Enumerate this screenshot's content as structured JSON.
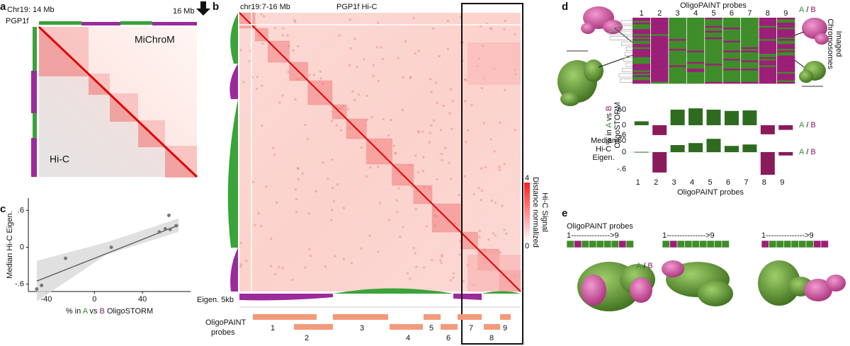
{
  "colors": {
    "A": "#2f8f2f",
    "B": "#8e1767"
  },
  "panel_a": {
    "letter": "a",
    "left_label": "Chr19: 14 Mb",
    "right_label": "16 Mb",
    "track_label": "PGP1f",
    "upper_label": "MiChroM",
    "lower_label": "Hi-C"
  },
  "panel_b": {
    "letter": "b",
    "region": "chr19:7-16 Mb",
    "title": "PGP1f Hi-C",
    "colorbar_max": 4,
    "colorbar_min": 0,
    "colorbar_label": [
      "Distance normalized",
      "Hi-C Signal"
    ],
    "eigen_label": "Eigen. 5kb",
    "probes_label": [
      "OligoPAINT",
      "probes"
    ],
    "probes": [
      "1",
      "2",
      "3",
      "4",
      "5",
      "6",
      "7",
      "8",
      "9"
    ]
  },
  "panel_d": {
    "letter": "d",
    "matrix_title": "OligoPAINT probes",
    "matrix_columns": [
      "1",
      "2",
      "3",
      "4",
      "5",
      "6",
      "7",
      "8",
      "9"
    ],
    "ab_label": [
      "A",
      "/",
      "B"
    ],
    "side_label": [
      "Imaged",
      "Chromosomes"
    ]
  },
  "panel_e": {
    "letter": "e",
    "title": "OligoPAINT probes",
    "ranges": [
      "1--------------->9",
      "1--------------->9",
      "1--------------->9"
    ],
    "ab_label": [
      "A",
      "/",
      "B"
    ]
  },
  "chart_data": [
    {
      "type": "scatter",
      "letter": "c",
      "y_label": "Median Hi-C Eigen.",
      "x_label": [
        "% in ",
        "A",
        " vs ",
        "B",
        " OligoSTORM"
      ],
      "x": [
        -48,
        -44,
        -24,
        14,
        54,
        59,
        62,
        63,
        68
      ],
      "values": [
        -0.68,
        -0.62,
        -0.18,
        0.0,
        0.25,
        0.3,
        0.52,
        0.29,
        0.35
      ],
      "xlim": [
        -55,
        80
      ],
      "xticks": [
        -40,
        0,
        40
      ],
      "ylim": [
        -0.72,
        0.8
      ],
      "yticks": [
        {
          "value": 0.6,
          "label": ".6"
        },
        0,
        {
          "value": -0.6,
          "label": "-.6"
        }
      ],
      "color": "#777777",
      "fit": {
        "x": [
          -48,
          70
        ],
        "y": [
          -0.55,
          0.36
        ]
      },
      "band": {
        "x": [
          -48,
          10,
          70
        ],
        "upper": [
          -0.22,
          0.08,
          0.47
        ],
        "lower": [
          -0.88,
          -0.12,
          0.25
        ]
      }
    },
    {
      "type": "bar",
      "y_label": [
        "% in ",
        "A",
        " vs ",
        "B",
        "OligoSTORM"
      ],
      "values": [
        15,
        -38,
        60,
        65,
        60,
        55,
        57,
        -35,
        -18
      ],
      "ylim": [
        -65,
        70
      ],
      "yticks": [
        60,
        0,
        -60
      ],
      "color": "#2e6b1f",
      "negative_color": "#8b1a5b",
      "legend": [
        "A",
        "/",
        "B"
      ]
    },
    {
      "type": "bar",
      "y_label": [
        "Median",
        "Hi-C",
        "Eigen."
      ],
      "x_label": "OligoPAINT probes",
      "categories": [
        "1",
        "2",
        "3",
        "4",
        "5",
        "6",
        "7",
        "8",
        "9"
      ],
      "values": [
        0.01,
        -0.72,
        0.25,
        0.32,
        0.47,
        0.22,
        0.27,
        -0.8,
        -0.12
      ],
      "ylim": [
        -0.85,
        0.65
      ],
      "yticks": [
        {
          "value": 0.6,
          "label": ".6"
        },
        0,
        {
          "value": -0.6,
          "label": "-.6"
        }
      ],
      "color": "#2e6b1f",
      "negative_color": "#8b1a5b",
      "legend": [
        "A",
        "/",
        "B"
      ]
    }
  ]
}
